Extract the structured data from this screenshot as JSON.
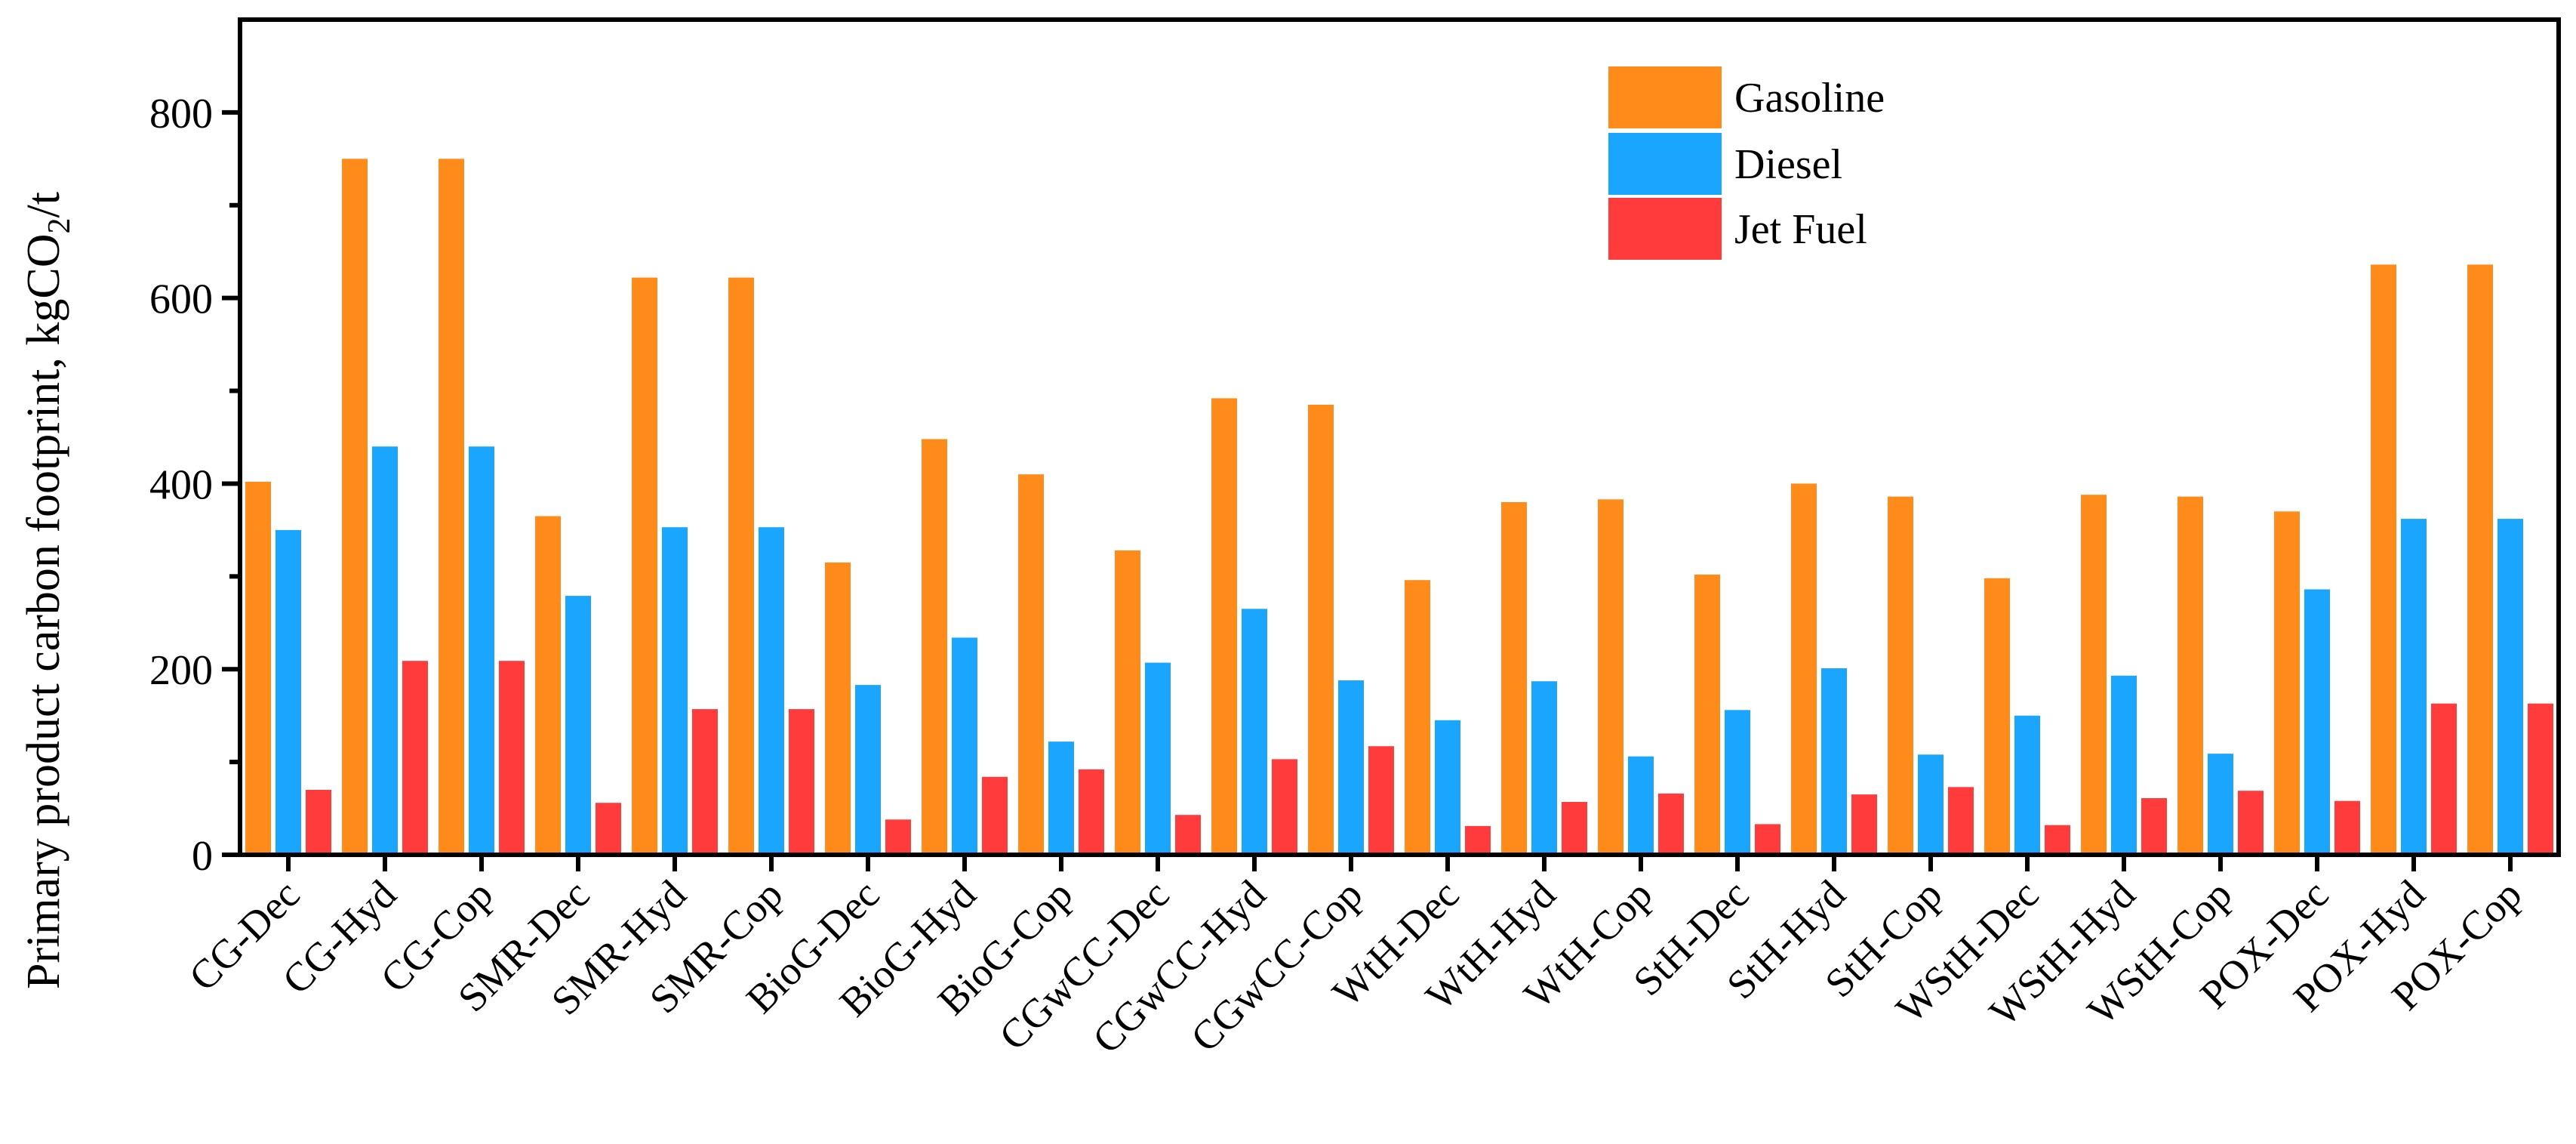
{
  "chart_data": {
    "type": "bar",
    "title": "",
    "xlabel": "",
    "ylabel": "Primary product carbon footprint, kgCO",
    "ylabel_subscript": "2",
    "ylabel_suffix": "/t",
    "ylim": [
      0,
      900
    ],
    "yticks": [
      0,
      200,
      400,
      600,
      800
    ],
    "ytick_labels": [
      "0",
      "200",
      "400",
      "600",
      "800"
    ],
    "legend_position": "top-right",
    "categories": [
      "CG-Dec",
      "CG-Hyd",
      "CG-Cop",
      "SMR-Dec",
      "SMR-Hyd",
      "SMR-Cop",
      "BioG-Dec",
      "BioG-Hyd",
      "BioG-Cop",
      "CGwCC-Dec",
      "CGwCC-Hyd",
      "CGwCC-Cop",
      "WtH-Dec",
      "WtH-Hyd",
      "WtH-Cop",
      "StH-Dec",
      "StH-Hyd",
      "StH-Cop",
      "WStH-Dec",
      "WStH-Hyd",
      "WStH-Cop",
      "POX-Dec",
      "POX-Hyd",
      "POX-Cop"
    ],
    "series": [
      {
        "name": "Gasoline",
        "color": "#FF8C1A",
        "values": [
          402,
          750,
          750,
          365,
          622,
          622,
          315,
          448,
          410,
          328,
          492,
          485,
          296,
          380,
          383,
          302,
          400,
          386,
          298,
          388,
          386,
          370,
          636,
          636
        ]
      },
      {
        "name": "Diesel",
        "color": "#1AA6FF",
        "values": [
          350,
          440,
          440,
          279,
          353,
          353,
          183,
          234,
          122,
          207,
          265,
          188,
          145,
          187,
          106,
          156,
          201,
          108,
          150,
          193,
          109,
          286,
          362,
          362
        ]
      },
      {
        "name": "Jet Fuel",
        "color": "#FF3B3B",
        "values": [
          70,
          209,
          209,
          56,
          157,
          157,
          38,
          84,
          92,
          43,
          103,
          117,
          31,
          57,
          66,
          33,
          65,
          73,
          32,
          61,
          69,
          58,
          163,
          163
        ]
      }
    ]
  }
}
